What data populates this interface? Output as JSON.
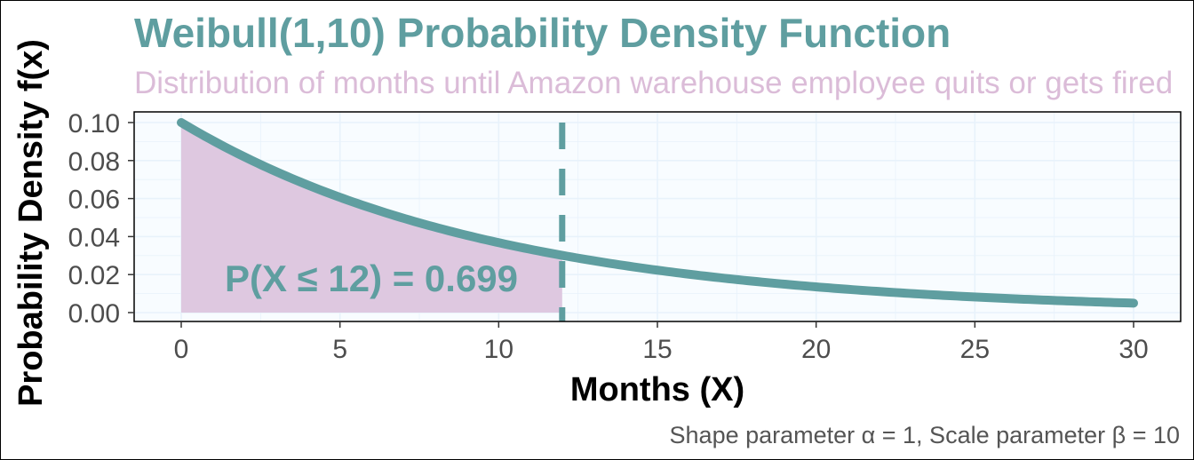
{
  "chart_data": {
    "type": "area",
    "title": "Weibull(1,10) Probability Density Function",
    "subtitle": "Distribution of months until Amazon warehouse employee quits or gets fired",
    "xlabel": "Months (X)",
    "ylabel": "Probability Density f(x)",
    "caption": "Shape parameter α = 1, Scale parameter β = 10",
    "annotation": "P(X ≤ 12) = 0.699",
    "xlim": [
      0,
      30
    ],
    "ylim": [
      0,
      0.1
    ],
    "x_ticks": [
      0,
      5,
      10,
      15,
      20,
      25,
      30
    ],
    "x_tick_labels": [
      "0",
      "5",
      "10",
      "15",
      "20",
      "25",
      "30"
    ],
    "y_ticks": [
      0,
      0.02,
      0.04,
      0.06,
      0.08,
      0.1
    ],
    "y_tick_labels": [
      "0.00",
      "0.02",
      "0.04",
      "0.06",
      "0.08",
      "0.10"
    ],
    "shape": 1,
    "scale": 10,
    "cutoff": 12,
    "probability": 0.699,
    "series": [
      {
        "x": [
          0,
          2,
          4,
          6,
          8,
          10,
          12,
          14,
          16,
          18,
          20,
          22,
          24,
          26,
          28,
          30
        ],
        "values": [
          0.1,
          0.0819,
          0.067,
          0.0549,
          0.0449,
          0.0368,
          0.0301,
          0.0247,
          0.0202,
          0.0165,
          0.0135,
          0.0111,
          0.0091,
          0.0074,
          0.0061,
          0.005
        ]
      }
    ],
    "grid": true,
    "colors": {
      "line": "#5f9ea0",
      "shade": "#dec8e0",
      "title": "#5f9ea0",
      "subtitle": "#dbbcd8",
      "panel": "#f8fcff",
      "grid": "#e8f2fb"
    }
  }
}
